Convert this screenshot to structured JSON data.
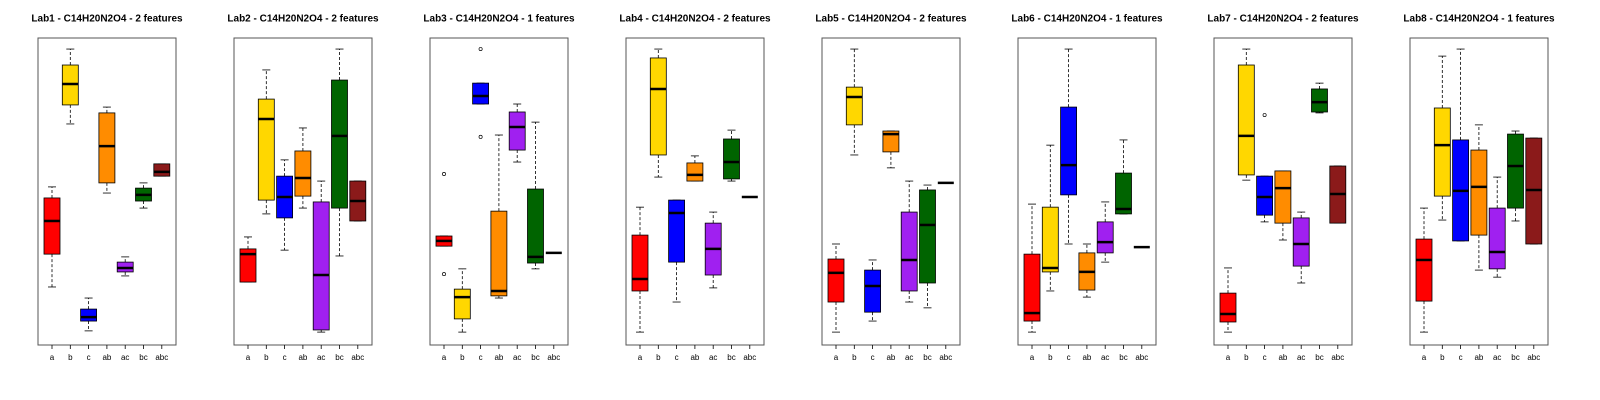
{
  "chart_data": [
    {
      "type": "boxplot",
      "title": "Lab1 - C14H20N2O4 - 2 features",
      "categories": [
        "a",
        "b",
        "c",
        "ab",
        "ac",
        "bc",
        "abc"
      ],
      "colors": [
        "#ff0000",
        "#ffd700",
        "#0000ff",
        "#ff8c00",
        "#a020f0",
        "#006400",
        "#8b1a1a"
      ],
      "ylim": [
        0,
        100
      ],
      "boxes": [
        {
          "low": 18.9,
          "q1": 29.6,
          "median": 40.4,
          "q3": 47.9,
          "high": 51.5
        },
        {
          "low": 72.0,
          "q1": 78.2,
          "median": 85.0,
          "q3": 91.2,
          "high": 96.4
        },
        {
          "low": 4.6,
          "q1": 7.8,
          "median": 9.1,
          "q3": 11.7,
          "high": 15.3
        },
        {
          "low": 49.5,
          "q1": 52.8,
          "median": 64.8,
          "q3": 75.6,
          "high": 77.5
        },
        {
          "low": 22.5,
          "q1": 23.8,
          "median": 25.1,
          "q3": 27.0,
          "high": 28.7
        },
        {
          "low": 44.6,
          "q1": 46.9,
          "median": 48.9,
          "q3": 51.1,
          "high": 52.8
        },
        {
          "low": 55.0,
          "q1": 55.0,
          "median": 56.4,
          "q3": 59.0,
          "high": 59.0
        }
      ]
    },
    {
      "type": "boxplot",
      "title": "Lab2 - C14H20N2O4 - 2 features",
      "categories": [
        "a",
        "b",
        "c",
        "ab",
        "ac",
        "bc",
        "abc"
      ],
      "colors": [
        "#ff0000",
        "#ffd700",
        "#0000ff",
        "#ff8c00",
        "#a020f0",
        "#006400",
        "#8b1a1a"
      ],
      "ylim": [
        0,
        100
      ],
      "boxes": [
        {
          "low": 20.5,
          "q1": 20.5,
          "median": 29.6,
          "q3": 31.3,
          "high": 35.2
        },
        {
          "low": 42.7,
          "q1": 47.2,
          "median": 73.6,
          "q3": 80.1,
          "high": 89.6
        },
        {
          "low": 30.9,
          "q1": 41.4,
          "median": 48.2,
          "q3": 55.0,
          "high": 60.3
        },
        {
          "low": 44.6,
          "q1": 48.5,
          "median": 54.4,
          "q3": 63.2,
          "high": 70.7
        },
        {
          "low": 4.2,
          "q1": 4.9,
          "median": 22.8,
          "q3": 46.6,
          "high": 53.4
        },
        {
          "low": 29.0,
          "q1": 44.6,
          "median": 68.1,
          "q3": 86.3,
          "high": 96.4
        },
        {
          "low": 40.4,
          "q1": 40.4,
          "median": 46.9,
          "q3": 53.4,
          "high": 53.4
        }
      ]
    },
    {
      "type": "boxplot",
      "title": "Lab3 - C14H20N2O4 - 1 features",
      "categories": [
        "a",
        "b",
        "c",
        "ab",
        "ac",
        "bc",
        "abc"
      ],
      "colors": [
        "#ff0000",
        "#ffd700",
        "#0000ff",
        "#ff8c00",
        "#a020f0",
        "#006400",
        "#8b1a1a"
      ],
      "ylim": [
        0,
        100
      ],
      "boxes": [
        {
          "low": 32.2,
          "q1": 32.2,
          "median": 33.9,
          "q3": 35.5,
          "high": 35.5,
          "outliers": [
            55.7,
            23.1
          ]
        },
        {
          "low": 4.2,
          "q1": 8.5,
          "median": 15.6,
          "q3": 18.2,
          "high": 24.8
        },
        {
          "low": 78.5,
          "q1": 78.5,
          "median": 81.1,
          "q3": 85.3,
          "high": 85.3,
          "outliers": [
            96.4,
            67.8
          ]
        },
        {
          "low": 15.3,
          "q1": 16.0,
          "median": 17.6,
          "q3": 43.6,
          "high": 68.4
        },
        {
          "low": 59.6,
          "q1": 63.5,
          "median": 71.0,
          "q3": 75.9,
          "high": 78.5
        },
        {
          "low": 24.8,
          "q1": 26.7,
          "median": 28.7,
          "q3": 50.8,
          "high": 72.6
        },
        {
          "low": 30.0,
          "q1": 30.0,
          "median": 30.0,
          "q3": 30.0,
          "high": 30.0
        }
      ]
    },
    {
      "type": "boxplot",
      "title": "Lab4 - C14H20N2O4 - 2 features",
      "categories": [
        "a",
        "b",
        "c",
        "ab",
        "ac",
        "bc",
        "abc"
      ],
      "colors": [
        "#ff0000",
        "#ffd700",
        "#0000ff",
        "#ff8c00",
        "#a020f0",
        "#006400",
        "#8b1a1a"
      ],
      "ylim": [
        0,
        100
      ],
      "boxes": [
        {
          "low": 4.2,
          "q1": 17.6,
          "median": 21.5,
          "q3": 35.8,
          "high": 44.9
        },
        {
          "low": 54.7,
          "q1": 61.9,
          "median": 83.4,
          "q3": 93.5,
          "high": 96.4
        },
        {
          "low": 14.0,
          "q1": 27.0,
          "median": 43.0,
          "q3": 47.2,
          "high": 47.2
        },
        {
          "low": 53.4,
          "q1": 53.4,
          "median": 55.4,
          "q3": 59.3,
          "high": 61.6
        },
        {
          "low": 18.6,
          "q1": 22.8,
          "median": 31.3,
          "q3": 39.7,
          "high": 43.3
        },
        {
          "low": 53.4,
          "q1": 54.1,
          "median": 59.6,
          "q3": 67.1,
          "high": 70.0
        },
        {
          "low": 48.2,
          "q1": 48.2,
          "median": 48.2,
          "q3": 48.2,
          "high": 48.2
        }
      ]
    },
    {
      "type": "boxplot",
      "title": "Lab5 - C14H20N2O4 - 2 features",
      "categories": [
        "a",
        "b",
        "c",
        "ab",
        "ac",
        "bc",
        "abc"
      ],
      "colors": [
        "#ff0000",
        "#ffd700",
        "#0000ff",
        "#ff8c00",
        "#a020f0",
        "#006400",
        "#8b1a1a"
      ],
      "ylim": [
        0,
        100
      ],
      "boxes": [
        {
          "low": 4.2,
          "q1": 14.0,
          "median": 23.5,
          "q3": 28.0,
          "high": 32.9
        },
        {
          "low": 61.9,
          "q1": 71.7,
          "median": 80.8,
          "q3": 84.0,
          "high": 96.4
        },
        {
          "low": 7.8,
          "q1": 10.7,
          "median": 19.2,
          "q3": 24.4,
          "high": 27.7
        },
        {
          "low": 57.7,
          "q1": 62.9,
          "median": 68.7,
          "q3": 69.7,
          "high": 69.7
        },
        {
          "low": 14.0,
          "q1": 17.6,
          "median": 27.7,
          "q3": 43.3,
          "high": 53.4
        },
        {
          "low": 12.1,
          "q1": 20.2,
          "median": 39.1,
          "q3": 50.5,
          "high": 52.1
        },
        {
          "low": 52.8,
          "q1": 52.8,
          "median": 52.8,
          "q3": 52.8,
          "high": 52.8
        }
      ]
    },
    {
      "type": "boxplot",
      "title": "Lab6 - C14H20N2O4 - 1 features",
      "categories": [
        "a",
        "b",
        "c",
        "ab",
        "ac",
        "bc",
        "abc"
      ],
      "colors": [
        "#ff0000",
        "#ffd700",
        "#0000ff",
        "#ff8c00",
        "#a020f0",
        "#006400",
        "#8b1a1a"
      ],
      "ylim": [
        0,
        100
      ],
      "boxes": [
        {
          "low": 4.2,
          "q1": 7.8,
          "median": 10.4,
          "q3": 29.6,
          "high": 45.9
        },
        {
          "low": 17.6,
          "q1": 23.8,
          "median": 25.1,
          "q3": 44.9,
          "high": 65.1
        },
        {
          "low": 32.9,
          "q1": 48.9,
          "median": 58.6,
          "q3": 77.5,
          "high": 96.4
        },
        {
          "low": 15.6,
          "q1": 17.9,
          "median": 23.8,
          "q3": 30.0,
          "high": 32.9
        },
        {
          "low": 27.0,
          "q1": 30.0,
          "median": 33.5,
          "q3": 40.1,
          "high": 46.6
        },
        {
          "low": 42.7,
          "q1": 42.7,
          "median": 44.3,
          "q3": 56.0,
          "high": 66.8
        },
        {
          "low": 31.9,
          "q1": 31.9,
          "median": 31.9,
          "q3": 31.9,
          "high": 31.9
        }
      ]
    },
    {
      "type": "boxplot",
      "title": "Lab7 - C14H20N2O4 - 2 features",
      "categories": [
        "a",
        "b",
        "c",
        "ab",
        "ac",
        "bc",
        "abc"
      ],
      "colors": [
        "#ff0000",
        "#ffd700",
        "#0000ff",
        "#ff8c00",
        "#a020f0",
        "#006400",
        "#8b1a1a"
      ],
      "ylim": [
        0,
        100
      ],
      "boxes": [
        {
          "low": 4.2,
          "q1": 7.5,
          "median": 10.1,
          "q3": 16.9,
          "high": 25.1
        },
        {
          "low": 53.7,
          "q1": 55.4,
          "median": 68.1,
          "q3": 91.2,
          "high": 96.4
        },
        {
          "low": 40.1,
          "q1": 42.3,
          "median": 48.2,
          "q3": 55.0,
          "high": 55.0,
          "outliers": [
            74.9
          ]
        },
        {
          "low": 34.2,
          "q1": 39.7,
          "median": 51.1,
          "q3": 56.7,
          "high": 56.7
        },
        {
          "low": 20.2,
          "q1": 25.7,
          "median": 32.9,
          "q3": 41.4,
          "high": 43.3
        },
        {
          "low": 75.6,
          "q1": 75.9,
          "median": 79.1,
          "q3": 83.4,
          "high": 85.3
        },
        {
          "low": 39.7,
          "q1": 39.7,
          "median": 49.2,
          "q3": 58.3,
          "high": 58.3
        }
      ]
    },
    {
      "type": "boxplot",
      "title": "Lab8 - C14H20N2O4 - 1 features",
      "categories": [
        "a",
        "b",
        "c",
        "ab",
        "ac",
        "bc",
        "abc"
      ],
      "colors": [
        "#ff0000",
        "#ffd700",
        "#0000ff",
        "#ff8c00",
        "#a020f0",
        "#006400",
        "#8b1a1a"
      ],
      "ylim": [
        0,
        100
      ],
      "boxes": [
        {
          "low": 4.2,
          "q1": 14.3,
          "median": 27.7,
          "q3": 34.5,
          "high": 44.6
        },
        {
          "low": 40.7,
          "q1": 48.5,
          "median": 65.1,
          "q3": 77.2,
          "high": 94.1
        },
        {
          "low": 33.9,
          "q1": 33.9,
          "median": 50.2,
          "q3": 66.8,
          "high": 96.4
        },
        {
          "low": 24.4,
          "q1": 35.8,
          "median": 51.5,
          "q3": 63.5,
          "high": 71.7
        },
        {
          "low": 22.1,
          "q1": 24.8,
          "median": 30.3,
          "q3": 44.6,
          "high": 54.7
        },
        {
          "low": 40.4,
          "q1": 44.6,
          "median": 58.3,
          "q3": 68.7,
          "high": 69.7
        },
        {
          "low": 32.9,
          "q1": 32.9,
          "median": 50.5,
          "q3": 67.4,
          "high": 67.4
        }
      ]
    }
  ]
}
